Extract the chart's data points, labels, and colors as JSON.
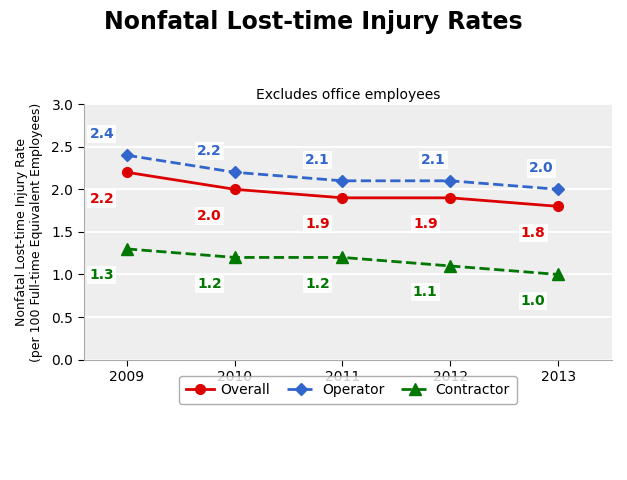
{
  "title": "Nonfatal Lost-time Injury Rates",
  "subtitle": "Excludes office employees",
  "ylabel": "Nonfatal Lost-time Injury Rate\n(per 100 Full-time Equivalent Employees)",
  "years": [
    2009,
    2010,
    2011,
    2012,
    2013
  ],
  "overall": [
    2.2,
    2.0,
    1.9,
    1.9,
    1.8
  ],
  "operator": [
    2.4,
    2.2,
    2.1,
    2.1,
    2.0
  ],
  "contractor": [
    1.3,
    1.2,
    1.2,
    1.1,
    1.0
  ],
  "overall_color": "#dd0000",
  "operator_color": "#3366cc",
  "contractor_color": "#007700",
  "overall_label": "Overall",
  "operator_label": "Operator",
  "contractor_label": "Contractor",
  "ylim": [
    0.0,
    3.0
  ],
  "yticks": [
    0.0,
    0.5,
    1.0,
    1.5,
    2.0,
    2.5,
    3.0
  ],
  "plot_bg_color": "#eeeeee",
  "fig_bg_color": "#ffffff",
  "title_fontsize": 17,
  "subtitle_fontsize": 10,
  "axis_label_fontsize": 9,
  "tick_fontsize": 10,
  "annot_fontsize": 10,
  "legend_fontsize": 10,
  "annot_box_color": "#f0f0f0"
}
